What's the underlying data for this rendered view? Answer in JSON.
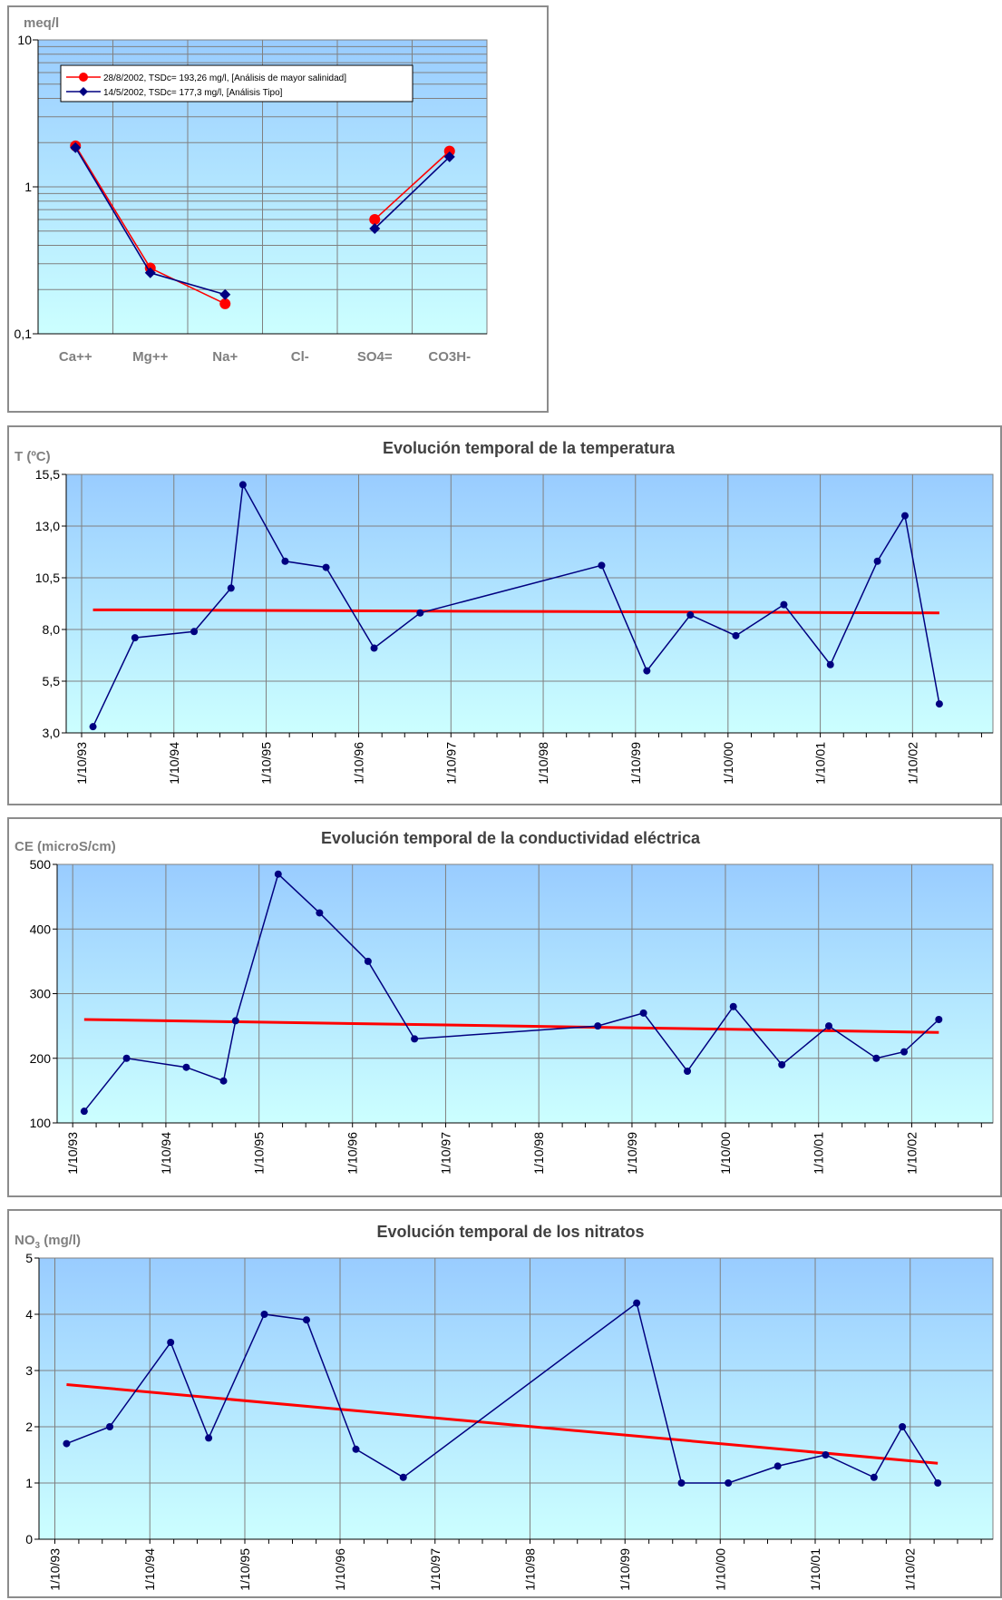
{
  "chart_data": [
    {
      "type": "line",
      "ylabel": "meq/l",
      "yscale": "log",
      "ylim": [
        0.1,
        10
      ],
      "ytick_labels": [
        "10",
        "1",
        "0,1"
      ],
      "categories": [
        "Ca++",
        "Mg++",
        "Na+",
        "Cl-",
        "SO4=",
        "CO3H-"
      ],
      "series": [
        {
          "name": "28/8/2002, TSDc= 193,26 mg/l, [Análisis de mayor salinidad]",
          "color": "#ff0000",
          "marker": "circle",
          "values": [
            1.9,
            0.28,
            0.16,
            null,
            0.6,
            1.75
          ]
        },
        {
          "name": "14/5/2002, TSDc= 177,3 mg/l, [Análisis Tipo]",
          "color": "#000080",
          "marker": "diamond",
          "values": [
            1.85,
            0.26,
            0.185,
            null,
            0.52,
            1.6
          ]
        }
      ],
      "grid": true,
      "legend": "top-left"
    },
    {
      "type": "line",
      "title": "Evolución temporal de la temperatura",
      "ylabel": "T (ºC)",
      "ylim": [
        3,
        15.5
      ],
      "ytick_labels": [
        "15,5",
        "13,0",
        "10,5",
        "8,0",
        "5,5",
        "3,0"
      ],
      "xlim": [
        "1993-08-01",
        "2003-08-15"
      ],
      "xtick_labels": [
        "1/10/93",
        "1/10/94",
        "1/10/95",
        "1/10/96",
        "1/10/97",
        "1/10/98",
        "1/10/99",
        "1/10/00",
        "1/10/01",
        "1/10/02"
      ],
      "series": [
        {
          "color": "#000080",
          "x": [
            "1993-11-15",
            "1994-04-30",
            "1994-12-20",
            "1995-05-15",
            "1995-07-01",
            "1995-12-15",
            "1996-05-25",
            "1996-12-01",
            "1997-06-01",
            "1999-05-20",
            "1999-11-15",
            "2000-05-05",
            "2000-11-01",
            "2001-05-10",
            "2001-11-10",
            "2002-05-15",
            "2002-09-01",
            "2003-01-15"
          ],
          "y": [
            3.3,
            7.6,
            7.9,
            10.0,
            15.0,
            11.3,
            11.0,
            7.1,
            8.8,
            11.1,
            6.0,
            8.7,
            7.7,
            9.2,
            6.3,
            11.3,
            13.5,
            4.4
          ]
        },
        {
          "color": "#ff0000",
          "trend": true,
          "x": [
            "1993-11-15",
            "2003-01-15"
          ],
          "y": [
            8.95,
            8.8
          ]
        }
      ],
      "grid": true
    },
    {
      "type": "line",
      "title": "Evolución temporal de la conductividad eléctrica",
      "ylabel": "CE (microS/cm)",
      "ylim": [
        100,
        500
      ],
      "ytick_labels": [
        "500",
        "400",
        "300",
        "200",
        "100"
      ],
      "xlim": [
        "1993-08-01",
        "2003-08-15"
      ],
      "xtick_labels": [
        "1/10/93",
        "1/10/94",
        "1/10/95",
        "1/10/96",
        "1/10/97",
        "1/10/98",
        "1/10/99",
        "1/10/00",
        "1/10/01",
        "1/10/02"
      ],
      "series": [
        {
          "color": "#000080",
          "x": [
            "1993-11-15",
            "1994-04-30",
            "1994-12-20",
            "1995-05-15",
            "1995-07-01",
            "1995-12-15",
            "1996-05-25",
            "1996-12-01",
            "1997-06-01",
            "1999-05-20",
            "1999-11-15",
            "2000-05-05",
            "2000-11-01",
            "2001-05-10",
            "2001-11-10",
            "2002-05-15",
            "2002-09-01",
            "2003-01-15"
          ],
          "y": [
            118,
            200,
            186,
            165,
            258,
            485,
            425,
            350,
            230,
            250,
            270,
            180,
            280,
            190,
            250,
            200,
            210,
            260
          ]
        },
        {
          "color": "#ff0000",
          "trend": true,
          "x": [
            "1993-11-15",
            "2003-01-15"
          ],
          "y": [
            260,
            240
          ]
        }
      ],
      "grid": true
    },
    {
      "type": "line",
      "title": "Evolución temporal de los nitratos",
      "ylabel": "NO3 (mg/l)",
      "ylim": [
        0,
        5
      ],
      "ytick_labels": [
        "5",
        "4",
        "3",
        "2",
        "1",
        "0"
      ],
      "xlim": [
        "1993-08-01",
        "2003-08-15"
      ],
      "xtick_labels": [
        "1/10/93",
        "1/10/94",
        "1/10/95",
        "1/10/96",
        "1/10/97",
        "1/10/98",
        "1/10/99",
        "1/10/00",
        "1/10/01",
        "1/10/02"
      ],
      "series": [
        {
          "color": "#000080",
          "x": [
            "1993-11-15",
            "1994-04-30",
            "1994-12-20",
            "1995-05-15",
            "1995-12-15",
            "1996-05-25",
            "1996-12-01",
            "1997-06-01",
            "1999-11-15",
            "2000-05-05",
            "2000-11-01",
            "2001-05-10",
            "2001-11-10",
            "2002-05-15",
            "2002-09-01",
            "2003-01-15"
          ],
          "y": [
            1.7,
            2.0,
            3.5,
            1.8,
            4.0,
            3.9,
            1.6,
            1.1,
            4.2,
            1.0,
            1.0,
            1.3,
            1.5,
            1.1,
            2.0,
            1.0
          ]
        },
        {
          "color": "#ff0000",
          "trend": true,
          "x": [
            "1993-11-15",
            "2003-01-15"
          ],
          "y": [
            2.75,
            1.35
          ]
        }
      ],
      "grid": true
    }
  ]
}
